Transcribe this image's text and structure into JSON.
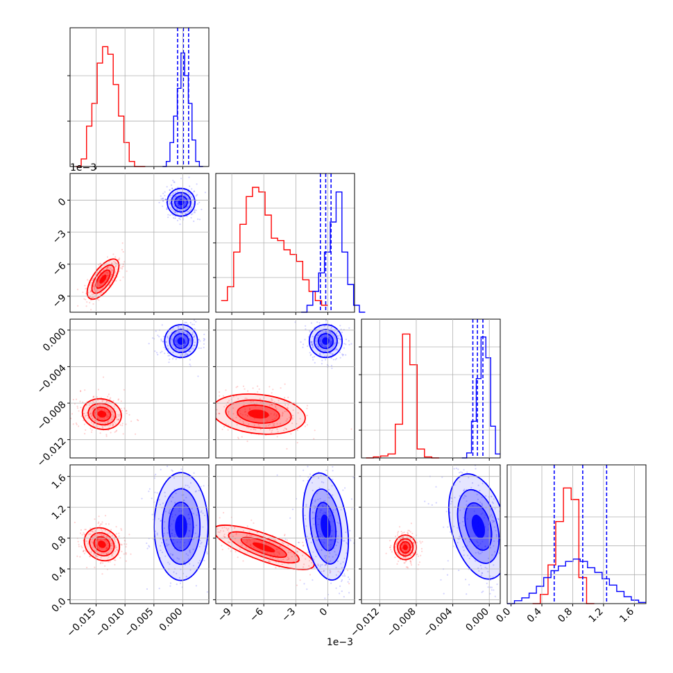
{
  "chart_data": {
    "type": "corner",
    "colors": {
      "red": "#ff0000",
      "blue": "#0000ff",
      "grid": "#b0b0b0"
    },
    "grid": true,
    "params": [
      {
        "range": [
          -0.0195,
          0.0045
        ],
        "ticks": [
          -0.015,
          -0.01,
          -0.005,
          0.0
        ],
        "tick_labels": [
          "−0.015",
          "−0.010",
          "−0.005",
          "0.000"
        ]
      },
      {
        "range": [
          -0.0105,
          0.0025
        ],
        "ticks": [
          -0.009,
          -0.006,
          -0.003,
          0.0
        ],
        "tick_labels": [
          "−9",
          "−6",
          "−3",
          "0"
        ],
        "offset": "1e−3"
      },
      {
        "range": [
          -0.014,
          0.0012
        ],
        "ticks": [
          -0.012,
          -0.008,
          -0.004,
          0.0
        ],
        "tick_labels": [
          "−0.012",
          "−0.008",
          "−0.004",
          "0.000"
        ]
      },
      {
        "range": [
          -0.05,
          1.75
        ],
        "ticks": [
          0.0,
          0.4,
          0.8,
          1.2,
          1.6
        ],
        "tick_labels": [
          "0.0",
          "0.4",
          "0.8",
          "1.2",
          "1.6"
        ]
      }
    ],
    "diag": [
      {
        "ymax": 1.1,
        "yticks": [
          0.36,
          0.72
        ],
        "red": [
          0.0,
          0.06,
          0.32,
          0.5,
          0.82,
          0.95,
          0.89,
          0.65,
          0.4,
          0.19,
          0.04,
          0.0,
          0.0
        ],
        "red_range": [
          -0.0185,
          -0.0065
        ],
        "blue": [
          0.0,
          0.04,
          0.19,
          0.4,
          0.62,
          0.9,
          0.72,
          0.5,
          0.21,
          0.04,
          0.0
        ],
        "blue_range": [
          -0.0035,
          0.0035
        ],
        "quantiles": [
          -0.0009,
          0.0001,
          0.001
        ]
      },
      {
        "ymax": 0.6,
        "yticks": [
          0.15,
          0.3,
          0.45
        ],
        "red": [
          0.05,
          0.11,
          0.26,
          0.38,
          0.5,
          0.54,
          0.52,
          0.42,
          0.32,
          0.31,
          0.27,
          0.25,
          0.22,
          0.14,
          0.09,
          0.05,
          0.03
        ],
        "red_range": [
          -0.01,
          0.0
        ],
        "blue": [
          0.0,
          0.03,
          0.09,
          0.17,
          0.26,
          0.39,
          0.52,
          0.26,
          0.12,
          0.03,
          0.0
        ],
        "blue_range": [
          -0.0025,
          0.0035
        ],
        "quantiles": [
          -0.0007,
          -0.0002,
          0.0003
        ]
      },
      {
        "ymax": 1.4,
        "yticks": [
          0.28,
          0.56,
          0.84,
          1.12
        ],
        "red": [
          0.0,
          0.01,
          0.02,
          0.04,
          0.34,
          1.25,
          0.94,
          0.09,
          0.01,
          0.0
        ],
        "red_range": [
          -0.0135,
          -0.0055
        ],
        "blue": [
          0.0,
          0.05,
          0.37,
          0.8,
          1.22,
          1.01,
          0.32,
          0.04
        ],
        "blue_range": [
          -0.003,
          0.0012
        ],
        "quantiles": [
          -0.0018,
          -0.0013,
          -0.0007
        ]
      },
      {
        "ymax": 2.4,
        "yticks": [
          0.5,
          1.0,
          1.5
        ],
        "red": [
          0.0,
          0.16,
          0.67,
          1.42,
          2.0,
          1.8,
          0.45,
          0.0
        ],
        "red_range": [
          0.28,
          1.08
        ],
        "blue": [
          0.0,
          0.05,
          0.1,
          0.18,
          0.3,
          0.45,
          0.57,
          0.65,
          0.73,
          0.77,
          0.73,
          0.62,
          0.54,
          0.43,
          0.32,
          0.21,
          0.12,
          0.06,
          0.02
        ],
        "blue_range": [
          -0.05,
          1.75
        ],
        "quantiles": [
          0.56,
          0.93,
          1.24
        ]
      }
    ],
    "offdiag": [
      {
        "row": 1,
        "col": 0,
        "red": {
          "mean": [
            -0.0138,
            -0.0074
          ],
          "sd": [
            0.0018,
            0.0011
          ],
          "angle": 55,
          "xy_ratio": 2.3
        },
        "blue": {
          "mean": [
            -0.0003,
            -0.0002
          ],
          "sd": [
            0.0012,
            0.0006
          ],
          "angle": 0,
          "xy_ratio": 1.0
        }
      },
      {
        "row": 2,
        "col": 0,
        "red": {
          "mean": [
            -0.014,
            -0.0092
          ],
          "sd": [
            0.0017,
            0.0006
          ],
          "angle": -12,
          "xy_ratio": 1.3
        },
        "blue": {
          "mean": [
            -0.0003,
            -0.0012
          ],
          "sd": [
            0.0012,
            0.0009
          ],
          "angle": 0,
          "xy_ratio": 1.0
        }
      },
      {
        "row": 2,
        "col": 1,
        "red": {
          "mean": [
            -0.0065,
            -0.0092
          ],
          "sd": [
            0.0022,
            0.0006
          ],
          "angle": -6,
          "xy_ratio": 2.4
        },
        "blue": {
          "mean": [
            -0.0002,
            -0.0012
          ],
          "sd": [
            0.0006,
            0.0009
          ],
          "angle": 0,
          "xy_ratio": 1.0
        }
      },
      {
        "row": 3,
        "col": 0,
        "red": {
          "mean": [
            -0.014,
            0.72
          ],
          "sd": [
            0.0016,
            0.08
          ],
          "angle": -35,
          "xy_ratio": 1.2
        },
        "blue": {
          "mean": [
            -0.0003,
            0.95
          ],
          "sd": [
            0.0012,
            0.35
          ],
          "angle": 0,
          "xy_ratio": 0.5
        }
      },
      {
        "row": 3,
        "col": 1,
        "red": {
          "mean": [
            -0.006,
            0.68
          ],
          "sd": [
            0.0025,
            0.07
          ],
          "angle": -20,
          "xy_ratio": 4.0
        },
        "blue": {
          "mean": [
            -0.0002,
            0.95
          ],
          "sd": [
            0.0006,
            0.35
          ],
          "angle": 8,
          "xy_ratio": 0.4
        }
      },
      {
        "row": 3,
        "col": 2,
        "red": {
          "mean": [
            -0.0092,
            0.68
          ],
          "sd": [
            0.0006,
            0.08
          ],
          "angle": 0,
          "xy_ratio": 0.9
        },
        "blue": {
          "mean": [
            -0.0012,
            0.95
          ],
          "sd": [
            0.0006,
            0.35
          ],
          "angle": 15,
          "xy_ratio": 0.5
        }
      }
    ],
    "offset_labels": [
      {
        "text": "1e−3",
        "axis": "row1-y"
      },
      {
        "text": "1e−3",
        "axis": "col1-x"
      }
    ]
  }
}
